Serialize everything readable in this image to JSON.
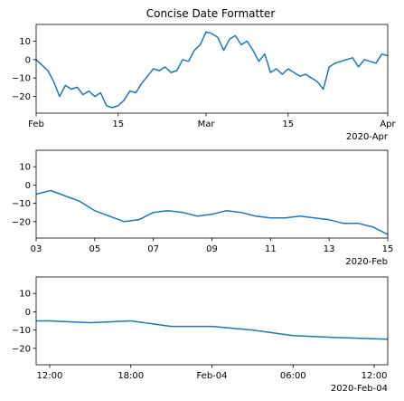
{
  "figure": {
    "title": "Concise Date Formatter",
    "background": "#ffffff"
  },
  "chart_data": [
    {
      "type": "line",
      "name": "panel-1",
      "x_type": "date",
      "xlim": [
        "2020-02-01",
        "2020-04-01"
      ],
      "ylim": [
        -29,
        19
      ],
      "yticks": [
        -20,
        -10,
        0,
        10
      ],
      "ytick_labels": [
        "−20",
        "−10",
        "0",
        "10"
      ],
      "xticks": [
        "2020-02-01",
        "2020-02-15",
        "2020-03-01",
        "2020-03-15",
        "2020-04-01"
      ],
      "xtick_labels": [
        "Feb",
        "15",
        "Mar",
        "15",
        "Apr"
      ],
      "offset_label": "2020-Apr",
      "series": [
        {
          "color": "#1f77b4",
          "x": [
            "2020-02-01",
            "2020-02-02",
            "2020-02-03",
            "2020-02-04",
            "2020-02-05",
            "2020-02-06",
            "2020-02-07",
            "2020-02-08",
            "2020-02-09",
            "2020-02-10",
            "2020-02-11",
            "2020-02-12",
            "2020-02-13",
            "2020-02-14",
            "2020-02-15",
            "2020-02-16",
            "2020-02-17",
            "2020-02-18",
            "2020-02-19",
            "2020-02-20",
            "2020-02-21",
            "2020-02-22",
            "2020-02-23",
            "2020-02-24",
            "2020-02-25",
            "2020-02-26",
            "2020-02-27",
            "2020-02-28",
            "2020-02-29",
            "2020-03-01",
            "2020-03-02",
            "2020-03-03",
            "2020-03-04",
            "2020-03-05",
            "2020-03-06",
            "2020-03-07",
            "2020-03-08",
            "2020-03-09",
            "2020-03-10",
            "2020-03-11",
            "2020-03-12",
            "2020-03-13",
            "2020-03-14",
            "2020-03-15",
            "2020-03-16",
            "2020-03-17",
            "2020-03-18",
            "2020-03-19",
            "2020-03-20",
            "2020-03-21",
            "2020-03-22",
            "2020-03-23",
            "2020-03-24",
            "2020-03-25",
            "2020-03-26",
            "2020-03-27",
            "2020-03-28",
            "2020-03-29",
            "2020-03-30",
            "2020-03-31",
            "2020-04-01"
          ],
          "y": [
            0,
            -3,
            -6,
            -12,
            -20,
            -14,
            -16,
            -15,
            -19,
            -17,
            -20,
            -18,
            -25,
            -26,
            -25,
            -22,
            -17,
            -18,
            -13,
            -9,
            -5,
            -6,
            -4,
            -7,
            -6,
            0,
            -1,
            5,
            8,
            15,
            14,
            12,
            5,
            11,
            13,
            8,
            10,
            5,
            -1,
            3,
            -7,
            -5,
            -8,
            -5,
            -7,
            -9,
            -8,
            -10,
            -12,
            -16,
            -4,
            -2,
            -1,
            0,
            1,
            -4,
            0,
            -1,
            -2,
            3,
            2
          ]
        }
      ]
    },
    {
      "type": "line",
      "name": "panel-2",
      "x_type": "date",
      "xlim": [
        "2020-02-03",
        "2020-02-15"
      ],
      "ylim": [
        -29,
        19
      ],
      "yticks": [
        -20,
        -10,
        0,
        10
      ],
      "ytick_labels": [
        "−20",
        "−10",
        "0",
        "10"
      ],
      "xticks": [
        "2020-02-03",
        "2020-02-05",
        "2020-02-07",
        "2020-02-09",
        "2020-02-11",
        "2020-02-13",
        "2020-02-15"
      ],
      "xtick_labels": [
        "03",
        "05",
        "07",
        "09",
        "11",
        "13",
        "15"
      ],
      "offset_label": "2020-Feb",
      "series": [
        {
          "color": "#1f77b4",
          "x": [
            "2020-02-03T00:00",
            "2020-02-03T12:00",
            "2020-02-04T00:00",
            "2020-02-04T12:00",
            "2020-02-05T00:00",
            "2020-02-05T12:00",
            "2020-02-06T00:00",
            "2020-02-06T12:00",
            "2020-02-07T00:00",
            "2020-02-07T12:00",
            "2020-02-08T00:00",
            "2020-02-08T12:00",
            "2020-02-09T00:00",
            "2020-02-09T12:00",
            "2020-02-10T00:00",
            "2020-02-10T12:00",
            "2020-02-11T00:00",
            "2020-02-11T12:00",
            "2020-02-12T00:00",
            "2020-02-12T12:00",
            "2020-02-13T00:00",
            "2020-02-13T12:00",
            "2020-02-14T00:00",
            "2020-02-14T12:00",
            "2020-02-15T00:00"
          ],
          "y": [
            -5,
            -3,
            -6,
            -9,
            -14,
            -17,
            -20,
            -19,
            -15,
            -14,
            -15,
            -17,
            -16,
            -14,
            -15,
            -17,
            -18,
            -18,
            -17,
            -18,
            -19,
            -21,
            -21,
            -23,
            -27
          ]
        }
      ]
    },
    {
      "type": "line",
      "name": "panel-3",
      "x_type": "date",
      "xlim": [
        "2020-02-03T11:00",
        "2020-02-04T13:00"
      ],
      "ylim": [
        -29,
        19
      ],
      "yticks": [
        -20,
        -10,
        0,
        10
      ],
      "ytick_labels": [
        "−20",
        "−10",
        "0",
        "10"
      ],
      "xticks": [
        "2020-02-03T12:00",
        "2020-02-03T18:00",
        "2020-02-04T00:00",
        "2020-02-04T06:00",
        "2020-02-04T12:00"
      ],
      "xtick_labels": [
        "12:00",
        "18:00",
        "Feb-04",
        "06:00",
        "12:00"
      ],
      "offset_label": "2020-Feb-04",
      "series": [
        {
          "color": "#1f77b4",
          "x": [
            "2020-02-03T11:00",
            "2020-02-03T12:00",
            "2020-02-03T15:00",
            "2020-02-03T18:00",
            "2020-02-03T21:00",
            "2020-02-04T00:00",
            "2020-02-04T03:00",
            "2020-02-04T06:00",
            "2020-02-04T09:00",
            "2020-02-04T13:00"
          ],
          "y": [
            -5,
            -5,
            -6,
            -5,
            -8,
            -8,
            -10,
            -13,
            -14,
            -15
          ]
        }
      ]
    }
  ]
}
